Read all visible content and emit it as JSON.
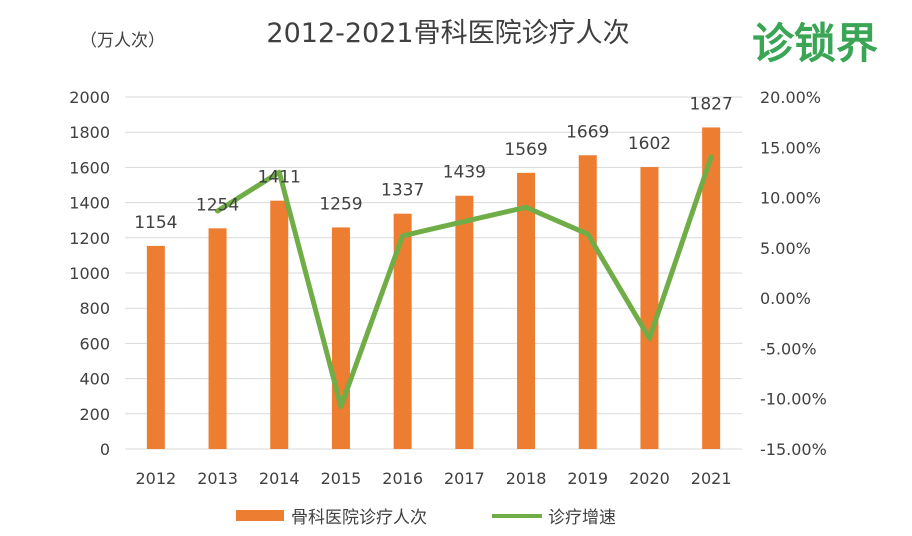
{
  "logo": {
    "text": "诊锁界"
  },
  "chart_data": {
    "type": "bar",
    "title": "2012-2021骨科医院诊疗人次",
    "left_axis_unit": "（万人次）",
    "categories": [
      "2012",
      "2013",
      "2014",
      "2015",
      "2016",
      "2017",
      "2018",
      "2019",
      "2020",
      "2021"
    ],
    "series": [
      {
        "name": "骨科医院诊疗人次",
        "type": "bar",
        "axis": "left",
        "color": "#ed7d31",
        "values": [
          1154,
          1254,
          1411,
          1259,
          1337,
          1439,
          1569,
          1669,
          1602,
          1827
        ]
      },
      {
        "name": "诊疗增速",
        "type": "line",
        "axis": "right",
        "color": "#70ad47",
        "values": [
          null,
          8.67,
          12.52,
          -10.77,
          6.2,
          7.63,
          9.03,
          6.37,
          -4.01,
          14.04
        ]
      }
    ],
    "left_axis": {
      "min": 0,
      "max": 2000,
      "step": 200,
      "ticks": [
        "0",
        "200",
        "400",
        "600",
        "800",
        "1000",
        "1200",
        "1400",
        "1600",
        "1800",
        "2000"
      ]
    },
    "right_axis": {
      "min": -15,
      "max": 20,
      "step": 5,
      "unit": "%",
      "ticks": [
        "-15.00%",
        "-10.00%",
        "-5.00%",
        "0.00%",
        "5.00%",
        "10.00%",
        "15.00%",
        "20.00%"
      ]
    },
    "data_labels": [
      "1154",
      "1254",
      "1411",
      "1259",
      "1337",
      "1439",
      "1569",
      "1669",
      "1602",
      "1827"
    ],
    "grid": true,
    "legend_position": "bottom"
  }
}
